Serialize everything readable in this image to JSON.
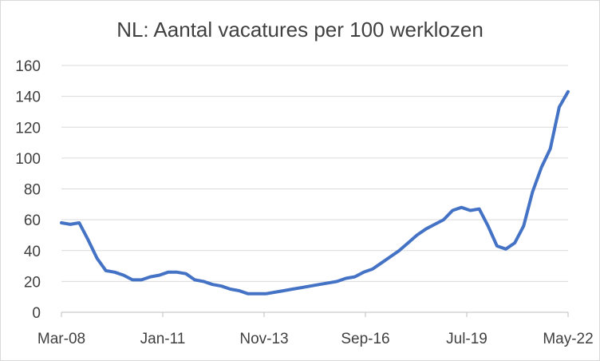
{
  "chart_data": {
    "type": "line",
    "title": "NL: Aantal vacatures per 100 werklozen",
    "xlabel": "",
    "ylabel": "",
    "ylim": [
      0,
      160
    ],
    "yticks": [
      0,
      20,
      40,
      60,
      80,
      100,
      120,
      140,
      160
    ],
    "xtick_labels": [
      "Mar-08",
      "Jan-11",
      "Nov-13",
      "Sep-16",
      "Jul-19",
      "May-22"
    ],
    "grid": true,
    "legend": "none",
    "line_color": "#4472c4",
    "series": [
      {
        "x": [
          "2008-03",
          "2008-06",
          "2008-09",
          "2008-12",
          "2009-03",
          "2009-06",
          "2009-09",
          "2009-12",
          "2010-03",
          "2010-06",
          "2010-09",
          "2010-12",
          "2011-03",
          "2011-06",
          "2011-09",
          "2011-12",
          "2012-03",
          "2012-06",
          "2012-09",
          "2012-12",
          "2013-03",
          "2013-06",
          "2013-09",
          "2013-12",
          "2014-03",
          "2014-06",
          "2014-09",
          "2014-12",
          "2015-03",
          "2015-06",
          "2015-09",
          "2015-12",
          "2016-03",
          "2016-06",
          "2016-09",
          "2016-12",
          "2017-03",
          "2017-06",
          "2017-09",
          "2017-12",
          "2018-03",
          "2018-06",
          "2018-09",
          "2018-12",
          "2019-03",
          "2019-06",
          "2019-09",
          "2019-12",
          "2020-03",
          "2020-06",
          "2020-09",
          "2020-12",
          "2021-03",
          "2021-06",
          "2021-09",
          "2021-12",
          "2022-03",
          "2022-06"
        ],
        "values": [
          58,
          57,
          58,
          47,
          35,
          27,
          26,
          24,
          21,
          21,
          23,
          24,
          26,
          26,
          25,
          21,
          20,
          18,
          17,
          15,
          14,
          12,
          12,
          12,
          13,
          14,
          15,
          16,
          17,
          18,
          19,
          20,
          22,
          23,
          26,
          28,
          32,
          36,
          40,
          45,
          50,
          54,
          57,
          60,
          66,
          68,
          66,
          67,
          56,
          43,
          41,
          45,
          56,
          78,
          94,
          106,
          133,
          143
        ]
      }
    ]
  }
}
